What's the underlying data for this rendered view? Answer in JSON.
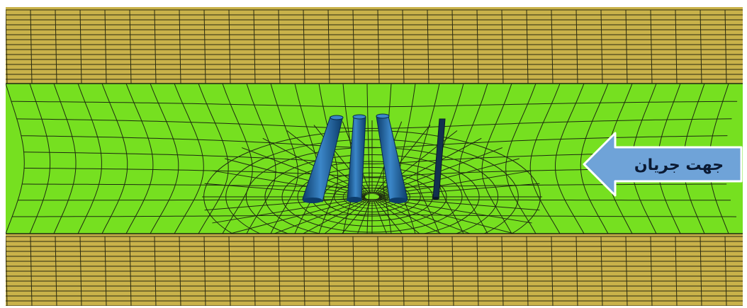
{
  "diagram": {
    "flow_label": "جهت جریان",
    "colors": {
      "background": "#ffffff",
      "bank": "#c9b24a",
      "channel": "#76e020",
      "mesh_line": "#1e2a10",
      "pier": "#2a6fb0",
      "pier_dark": "#0d3d6b",
      "arrow_fill": "#6fa3d8",
      "arrow_edge": "#ffffff"
    },
    "piers": [
      "pier-1",
      "pier-2",
      "pier-3",
      "pier-4"
    ],
    "flow_direction": "right-to-left"
  }
}
